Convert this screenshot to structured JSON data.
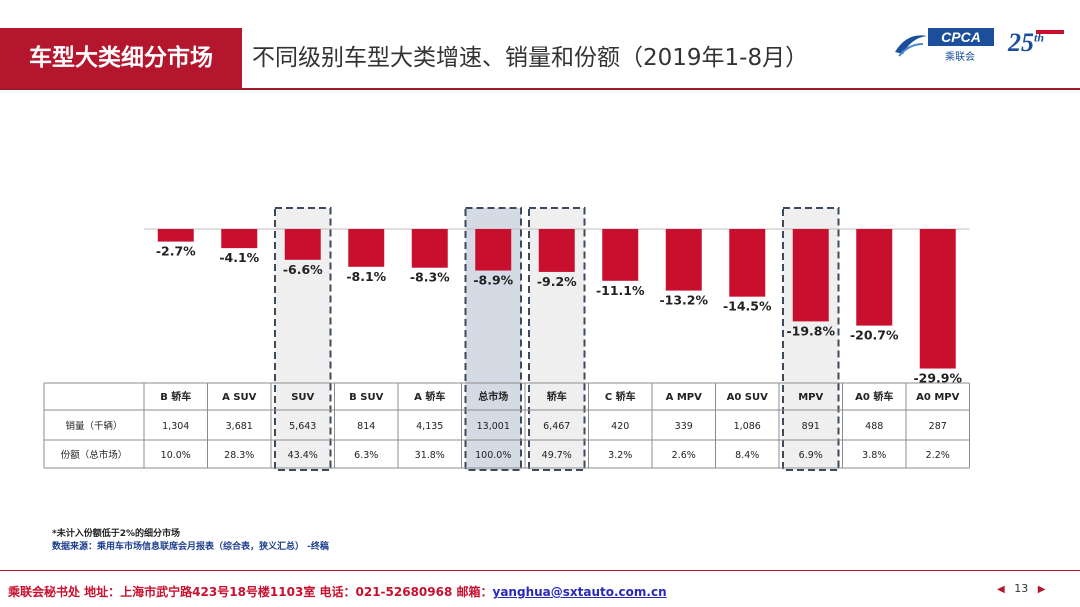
{
  "header": {
    "section_title": "车型大类细分市场",
    "subtitle": "不同级别车型大类增速、销量和份额（2019年1-8月）",
    "logo_cpca": "CPCA",
    "logo_cpca_sub": "乘联会",
    "logo_25": "25"
  },
  "chart_data": {
    "type": "bar",
    "categories": [
      "B 轿车",
      "A SUV",
      "SUV",
      "B SUV",
      "A 轿车",
      "总市场",
      "轿车",
      "C 轿车",
      "A MPV",
      "A0 SUV",
      "MPV",
      "A0 轿车",
      "A0 MPV"
    ],
    "values": [
      -2.7,
      -4.1,
      -6.6,
      -8.1,
      -8.3,
      -8.9,
      -9.2,
      -11.1,
      -13.2,
      -14.5,
      -19.8,
      -20.7,
      -29.9
    ],
    "data_labels": [
      "-2.7%",
      "-4.1%",
      "-6.6%",
      "-8.1%",
      "-8.3%",
      "-8.9%",
      "-9.2%",
      "-11.1%",
      "-13.2%",
      "-14.5%",
      "-19.8%",
      "-20.7%",
      "-29.9%"
    ],
    "ylim": [
      -30,
      0
    ],
    "bar_color": "#c8102e",
    "highlight_categories": [
      "SUV",
      "总市场",
      "轿车",
      "MPV"
    ],
    "table": {
      "rows": [
        {
          "label": "销量（千辆）",
          "values": [
            "1,304",
            "3,681",
            "5,643",
            "814",
            "4,135",
            "13,001",
            "6,467",
            "420",
            "339",
            "1,086",
            "891",
            "488",
            "287"
          ]
        },
        {
          "label": "份额（总市场）",
          "values": [
            "10.0%",
            "28.3%",
            "43.4%",
            "6.3%",
            "31.8%",
            "100.0%",
            "49.7%",
            "3.2%",
            "2.6%",
            "8.4%",
            "6.9%",
            "3.8%",
            "2.2%"
          ]
        }
      ]
    }
  },
  "notes": {
    "line1": "*未计入份额低于2%的细分市场",
    "line2": "数据来源：乘用车市场信息联席会月报表（综合表，狭义汇总）  -终稿"
  },
  "footer": {
    "text": "乘联会秘书处   地址：上海市武宁路423号18号楼1103室  电话：021-52680968   邮箱：",
    "email": "yanghua@sxtauto.com.cn",
    "page": "13"
  }
}
